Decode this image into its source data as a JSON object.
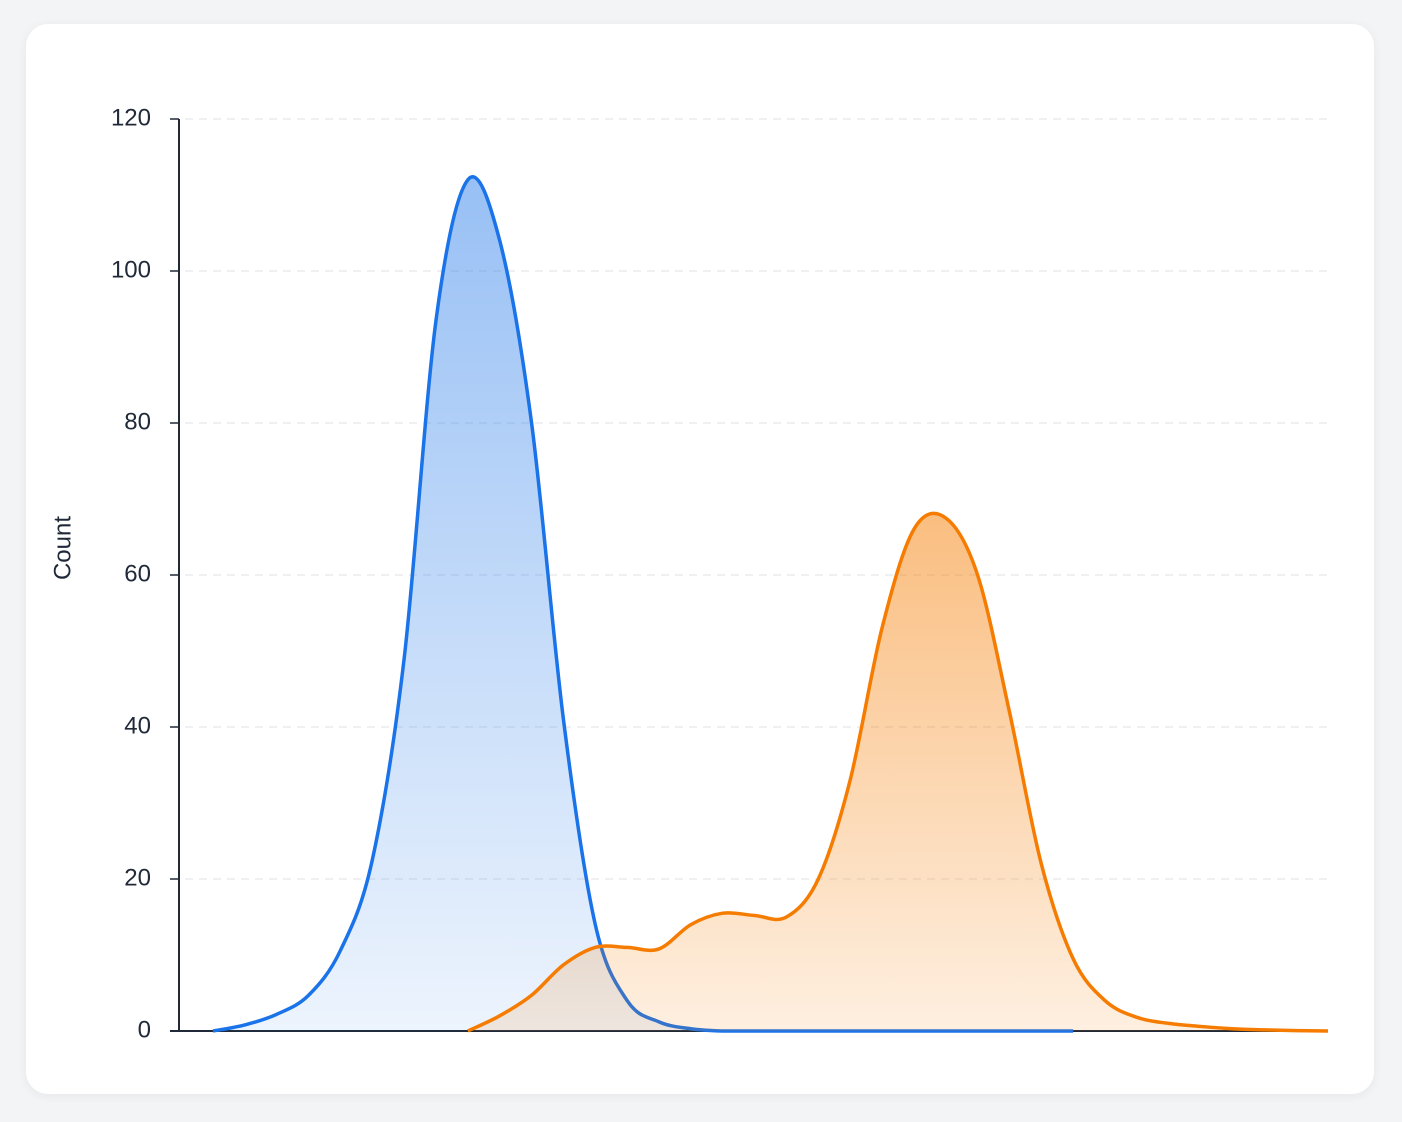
{
  "chart_data": {
    "type": "area",
    "y_label": "Count",
    "categories": [
      null,
      null,
      null,
      null,
      null,
      null,
      null,
      null,
      null,
      null,
      null,
      null,
      null,
      null,
      null,
      null,
      null,
      null,
      null,
      null,
      null,
      null,
      null,
      null,
      null,
      null,
      null,
      null,
      null,
      null,
      null,
      null,
      null,
      null,
      null,
      null
    ],
    "series": [
      {
        "color": "#1a73e8",
        "values": [
          0,
          0.8,
          2.2,
          4.7,
          10.6,
          22.5,
          49,
          93.5,
          112,
          104,
          80,
          41,
          14,
          4,
          1.2,
          0.3,
          0,
          0,
          0,
          0,
          0,
          0,
          0,
          0,
          0,
          0,
          0,
          0,
          null,
          null,
          null,
          null,
          null,
          null,
          null,
          null
        ]
      },
      {
        "color": "#f57c00",
        "values": [
          null,
          null,
          null,
          null,
          null,
          null,
          null,
          null,
          0,
          2,
          4.7,
          8.7,
          11,
          11,
          10.8,
          14,
          15.5,
          15.2,
          15,
          20,
          33,
          53,
          66,
          67.5,
          60,
          42,
          22,
          9.5,
          4,
          1.8,
          1,
          0.6,
          0.3,
          0.15,
          0.05,
          0
        ]
      }
    ],
    "ylim": [
      0,
      120
    ],
    "yticks": [
      0,
      20,
      40,
      60,
      80,
      100,
      120
    ],
    "grid": true
  }
}
